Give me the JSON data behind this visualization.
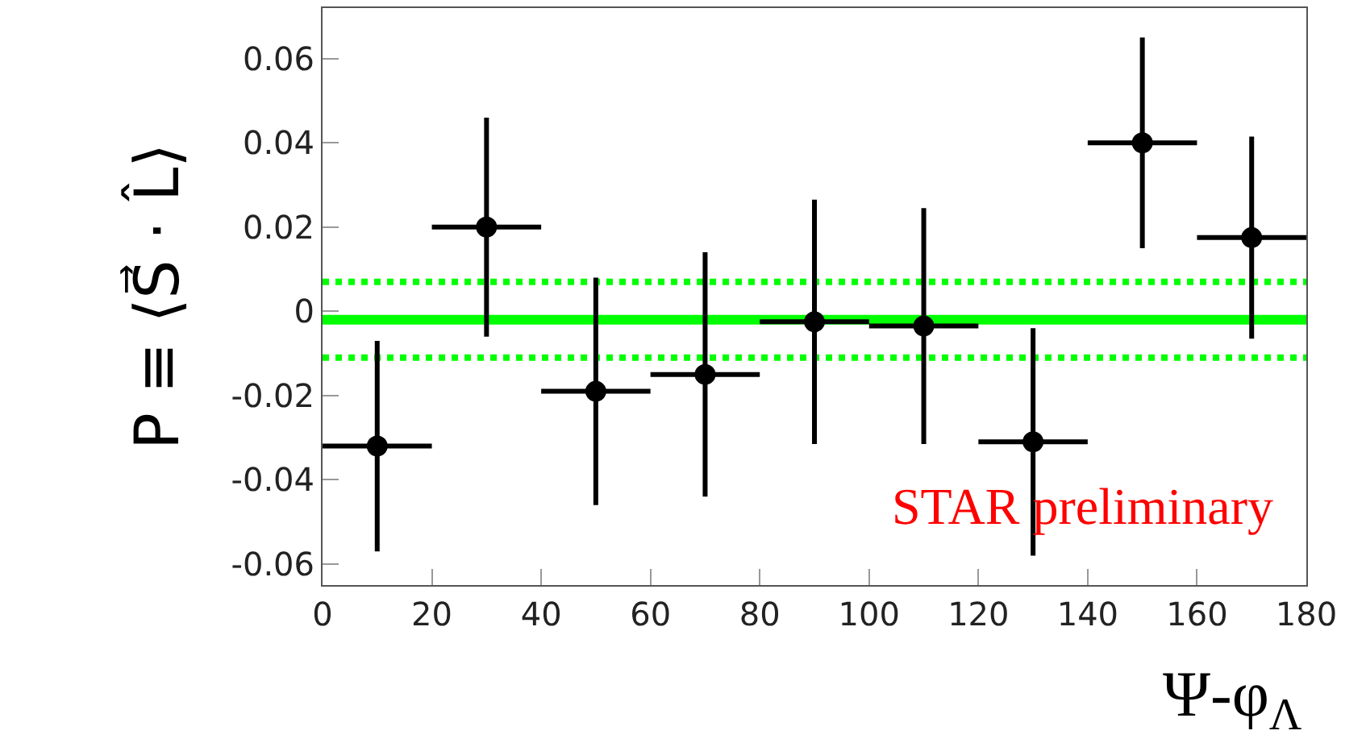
{
  "chart_data": {
    "type": "scatter",
    "xlabel": "Ψ-φ$_{Λ}$",
    "ylabel": "P ≡ ⟨S⃗ · L̂⟩",
    "x": [
      10,
      30,
      50,
      70,
      90,
      110,
      130,
      150,
      170
    ],
    "series": [
      {
        "color": "#000000",
        "values": [
          -0.032,
          0.02,
          -0.019,
          -0.015,
          -0.0025,
          -0.0035,
          -0.031,
          0.04,
          0.0175
        ],
        "errors": [
          0.025,
          0.026,
          0.027,
          0.029,
          0.029,
          0.028,
          0.027,
          0.025,
          0.024
        ],
        "xerrors": [
          10,
          10,
          10,
          10,
          10,
          10,
          10,
          10,
          10
        ]
      }
    ],
    "marker": "circle",
    "xlim": [
      0,
      180
    ],
    "xticks": [
      0,
      20,
      40,
      60,
      80,
      100,
      120,
      140,
      160,
      180
    ],
    "ylim": [
      -0.065,
      0.072
    ],
    "yticks": [
      -0.06,
      -0.04,
      -0.02,
      0,
      0.02,
      0.04,
      0.06
    ],
    "ref_lines": [
      {
        "axis": "y",
        "value": -0.002,
        "color": "#00ff00",
        "line_style": "solid"
      },
      {
        "axis": "y",
        "value": 0.007,
        "color": "#00ff00",
        "line_style": "dotted"
      },
      {
        "axis": "y",
        "value": -0.011,
        "color": "#00ff00",
        "line_style": "dotted"
      }
    ],
    "annotations": [
      "STAR preliminary"
    ],
    "legend": false
  }
}
